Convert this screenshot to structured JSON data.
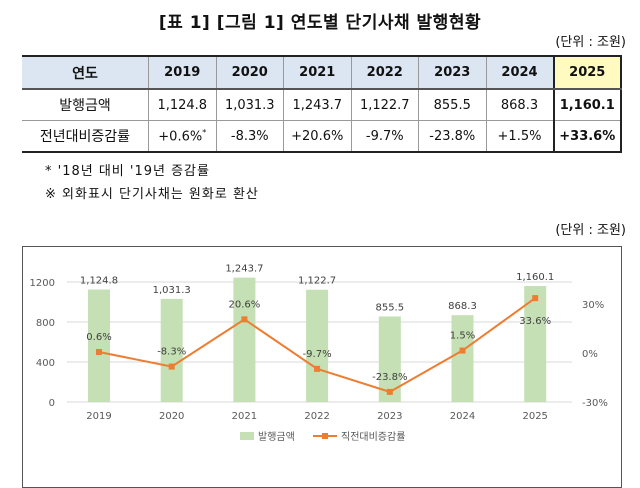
{
  "title": "[표 1] [그림 1] 연도별 단기사채 발행현황",
  "unit": "(단위 : 조원)",
  "table": {
    "header": [
      "연도",
      "2019",
      "2020",
      "2021",
      "2022",
      "2023",
      "2024",
      "2025"
    ],
    "rows": [
      [
        "발행금액",
        "1,124.8",
        "1,031.3",
        "1,243.7",
        "1,122.7",
        "855.5",
        "868.3",
        "1,160.1"
      ],
      [
        "전년대비증감률",
        "+0.6%",
        "-8.3%",
        "+20.6%",
        "-9.7%",
        "-23.8%",
        "+1.5%",
        "+33.6%"
      ]
    ],
    "footnote_mark": "*"
  },
  "notes": [
    "* '18년 대비 '19년 증감률",
    "※ 외화표시 단기사채는 원화로 환산"
  ],
  "chart_unit": "(단위 : 조원)",
  "chart_data": {
    "type": "bar+line",
    "categories": [
      "2019",
      "2020",
      "2021",
      "2022",
      "2023",
      "2024",
      "2025"
    ],
    "series": [
      {
        "name": "발행금액",
        "type": "bar",
        "axis": "left",
        "color": "#c5e0b4",
        "values": [
          1124.8,
          1031.3,
          1243.7,
          1122.7,
          855.5,
          868.3,
          1160.1
        ],
        "labels": [
          "1,124.8",
          "1,031.3",
          "1,243.7",
          "1,122.7",
          "855.5",
          "868.3",
          "1,160.1"
        ]
      },
      {
        "name": "직전대비증감률",
        "type": "line",
        "axis": "right",
        "color": "#ed7d31",
        "values": [
          0.6,
          -8.3,
          20.6,
          -9.7,
          -23.8,
          1.5,
          33.6
        ],
        "labels": [
          "0.6%",
          "-8.3%",
          "20.6%",
          "-9.7%",
          "-23.8%",
          "1.5%",
          "33.6%"
        ]
      }
    ],
    "left_ticks": [
      "0",
      "400",
      "800",
      "1200"
    ],
    "left_tick_values": [
      0,
      400,
      800,
      1200
    ],
    "right_ticks": [
      "-30%",
      "0%",
      "30%"
    ],
    "right_tick_values": [
      -30,
      0,
      30
    ],
    "ylim_left": [
      0,
      1200
    ],
    "grid": true,
    "legend": "bottom"
  }
}
